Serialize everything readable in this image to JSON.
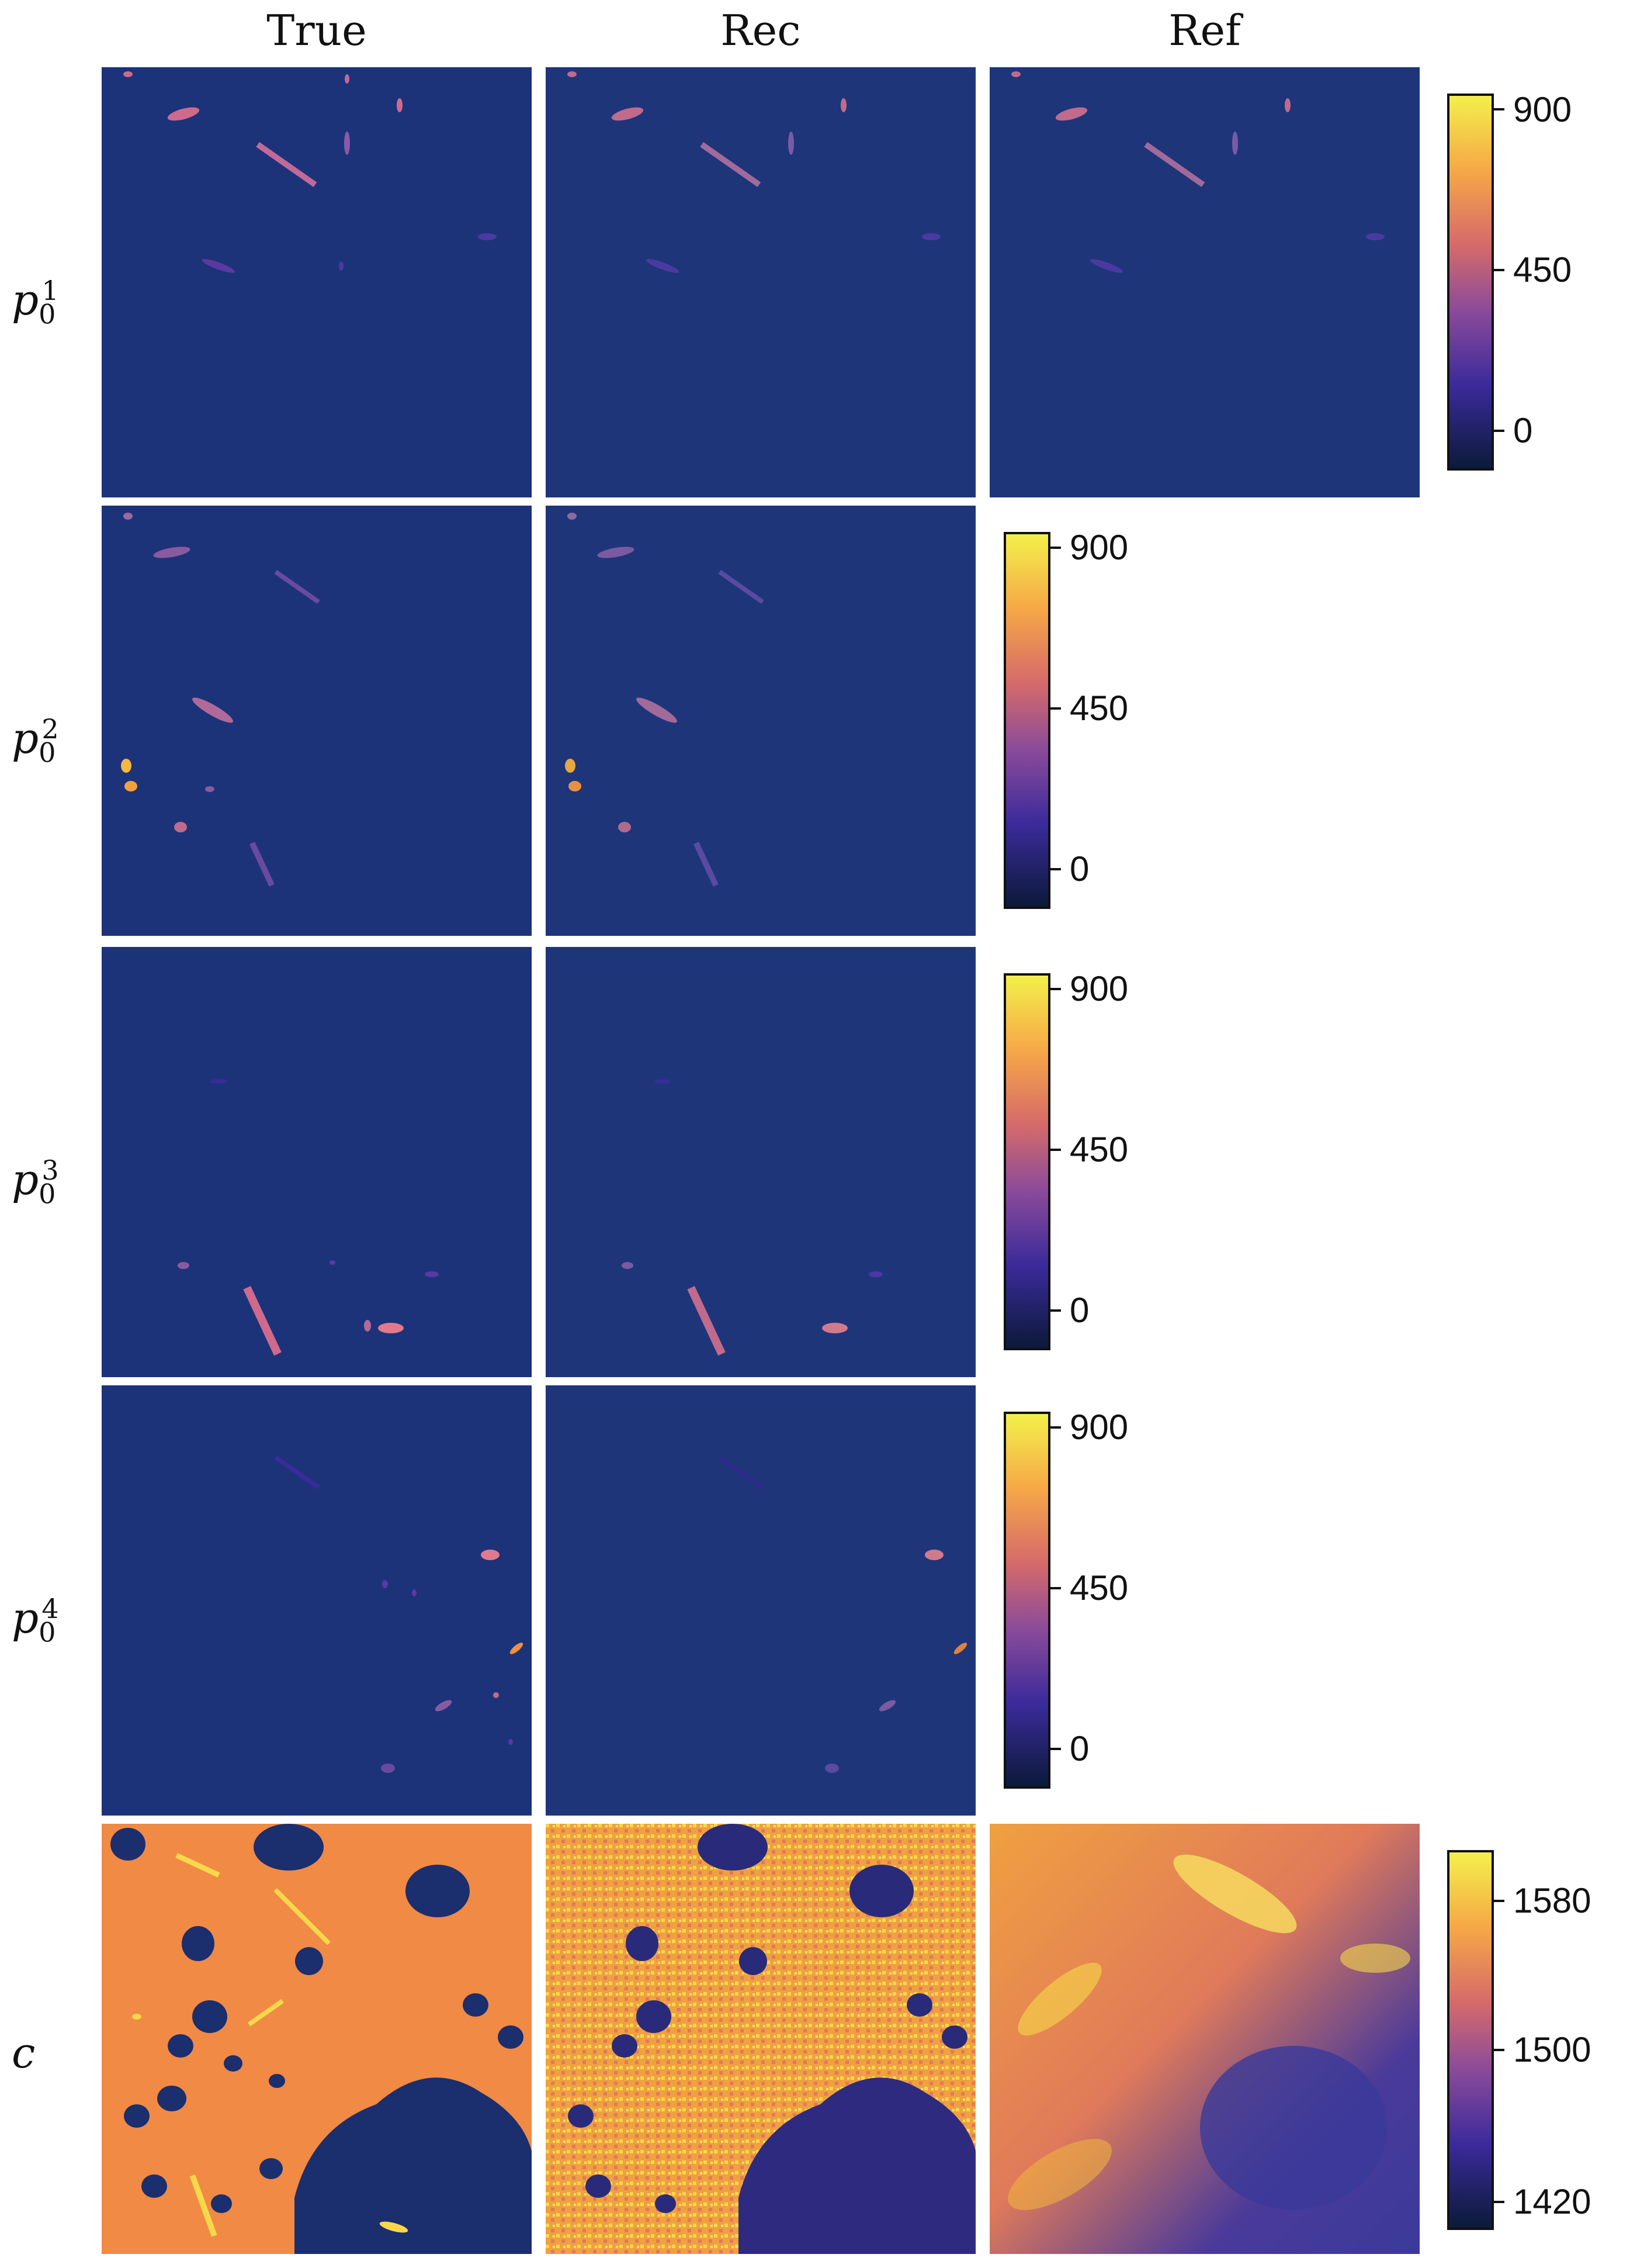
{
  "columns": [
    "True",
    "Rec",
    "Ref"
  ],
  "rows": [
    {
      "label_base": "p",
      "label_sub": "0",
      "label_sup": "1"
    },
    {
      "label_base": "p",
      "label_sub": "0",
      "label_sup": "2"
    },
    {
      "label_base": "p",
      "label_sub": "0",
      "label_sup": "3"
    },
    {
      "label_base": "p",
      "label_sub": "0",
      "label_sup": "4"
    },
    {
      "label_base": "c"
    }
  ],
  "colorbars": {
    "p_ticks": [
      "900",
      "450",
      "0"
    ],
    "c_ticks": [
      "1580",
      "1500",
      "1420"
    ]
  },
  "colors": {
    "background_p": "#1c3379",
    "background_c": "#f08a45",
    "dark": "#1b2e6e",
    "accent_pink": "#d06a8c",
    "accent_purple": "#5a3aa0",
    "accent_yellow": "#f7d84a"
  }
}
